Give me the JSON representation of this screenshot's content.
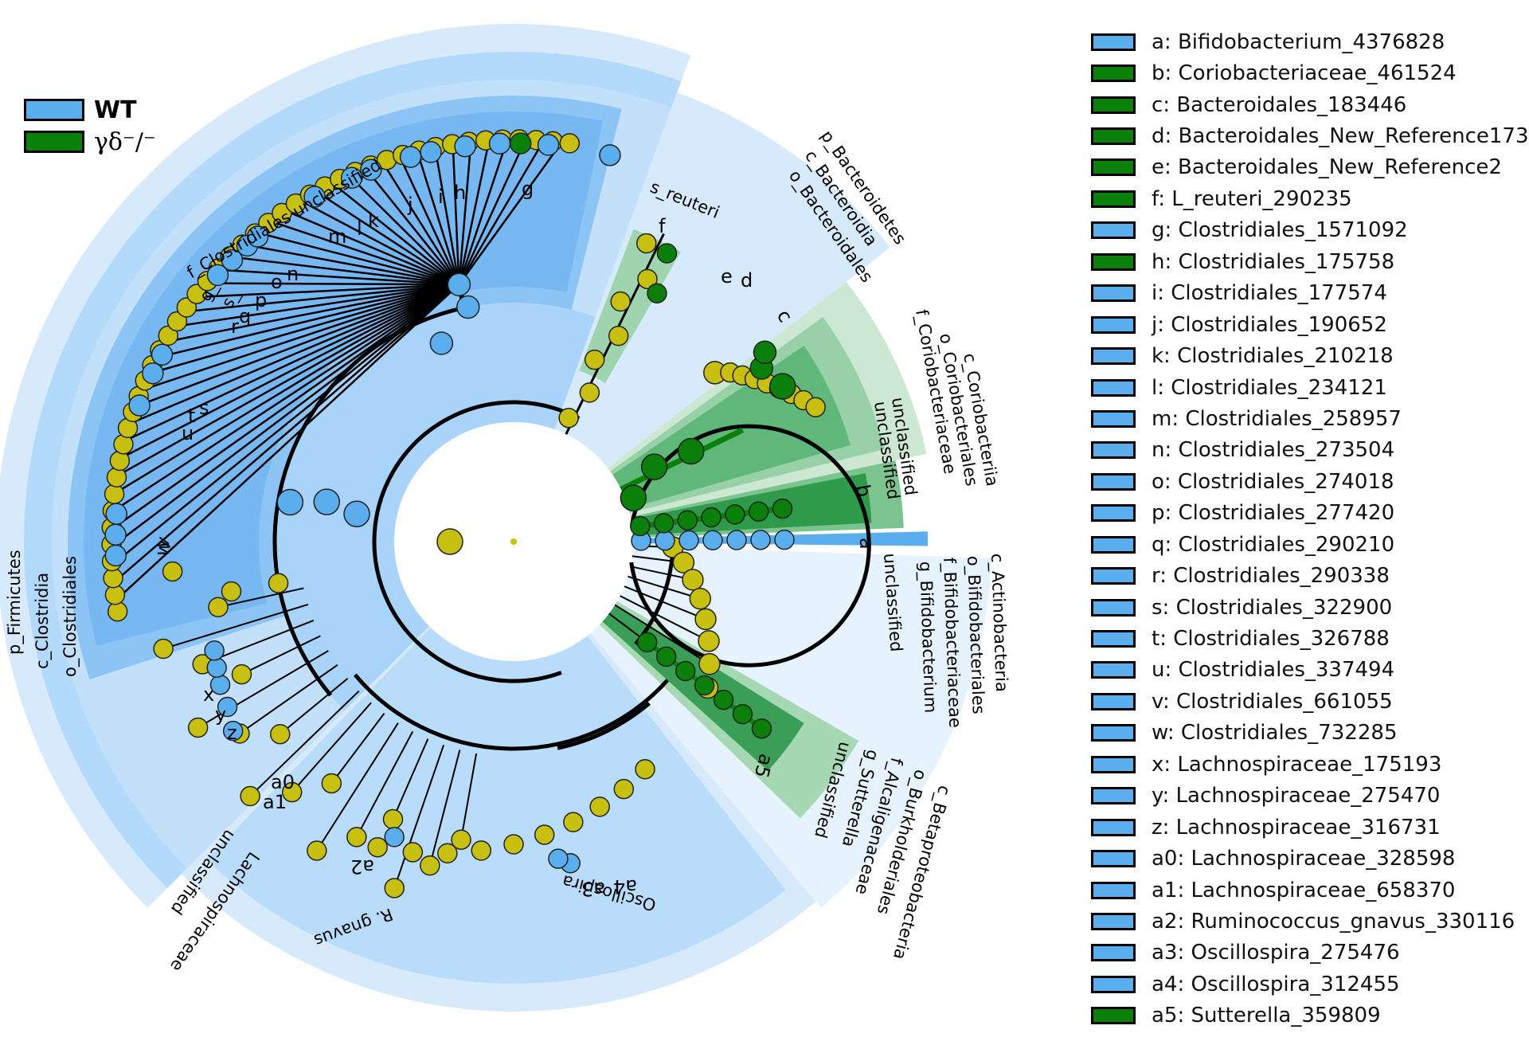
{
  "colors": {
    "wt": "#5aaeee",
    "ko": "#0a7f0a",
    "neutral": "#c8c010",
    "wt_band_light": "#d6eafc",
    "wt_band_mid": "#b3d9fb",
    "wt_band_dark": "#8cc4f6",
    "ko_band_light": "#cce8d2",
    "ko_band_dark": "#5fb77a"
  },
  "group_legend": [
    {
      "name": "WT",
      "color": "#5aaeee"
    },
    {
      "name": "γδ⁻/⁻",
      "color": "#0a7f0a"
    }
  ],
  "taxa_legend": [
    {
      "label": "a: Bifidobacterium_4376828",
      "group": "WT"
    },
    {
      "label": "b: Coriobacteriaceae_461524",
      "group": "KO"
    },
    {
      "label": "c: Bacteroidales_183446",
      "group": "KO"
    },
    {
      "label": "d: Bacteroidales_New_Reference173",
      "group": "KO"
    },
    {
      "label": "e: Bacteroidales_New_Reference2",
      "group": "KO"
    },
    {
      "label": "f: L_reuteri_290235",
      "group": "KO"
    },
    {
      "label": "g: Clostridiales_1571092",
      "group": "WT"
    },
    {
      "label": "h: Clostridiales_175758",
      "group": "KO"
    },
    {
      "label": "i: Clostridiales_177574",
      "group": "WT"
    },
    {
      "label": "j: Clostridiales_190652",
      "group": "WT"
    },
    {
      "label": "k: Clostridiales_210218",
      "group": "WT"
    },
    {
      "label": "l: Clostridiales_234121",
      "group": "WT"
    },
    {
      "label": "m: Clostridiales_258957",
      "group": "WT"
    },
    {
      "label": "n: Clostridiales_273504",
      "group": "WT"
    },
    {
      "label": "o: Clostridiales_274018",
      "group": "WT"
    },
    {
      "label": "p: Clostridiales_277420",
      "group": "WT"
    },
    {
      "label": "q: Clostridiales_290210",
      "group": "WT"
    },
    {
      "label": "r: Clostridiales_290338",
      "group": "WT"
    },
    {
      "label": "s: Clostridiales_322900",
      "group": "WT"
    },
    {
      "label": "t: Clostridiales_326788",
      "group": "WT"
    },
    {
      "label": "u: Clostridiales_337494",
      "group": "WT"
    },
    {
      "label": "v: Clostridiales_661055",
      "group": "WT"
    },
    {
      "label": "w: Clostridiales_732285",
      "group": "WT"
    },
    {
      "label": "x: Lachnospiraceae_175193",
      "group": "WT"
    },
    {
      "label": "y: Lachnospiraceae_275470",
      "group": "WT"
    },
    {
      "label": "z: Lachnospiraceae_316731",
      "group": "WT"
    },
    {
      "label": "a0: Lachnospiraceae_328598",
      "group": "WT"
    },
    {
      "label": "a1: Lachnospiraceae_658370",
      "group": "WT"
    },
    {
      "label": "a2: Ruminococcus_gnavus_330116",
      "group": "WT"
    },
    {
      "label": "a3: Oscillospira_275476",
      "group": "WT"
    },
    {
      "label": "a4: Oscillospira_312455",
      "group": "WT"
    },
    {
      "label": "a5: Sutterella_359809",
      "group": "KO"
    }
  ],
  "clade_labels": {
    "p_firmicutes": "p_Firmicutes",
    "c_clostridia": "c_Clostridia",
    "o_clostridiales": "o_Clostridiales",
    "f_clostridiales_unclassified": "f_Clostridiales unclassified",
    "g_": "g_",
    "s_": "s_",
    "s_reuteri": "s_reuteri",
    "p_bacteroidetes": "p_Bacteroidetes",
    "c_bacteroidia": "c_Bacteroidia",
    "o_bacteroidales": "o_Bacteroidales",
    "c_coriobacteriia": "c_Coriobacteriia",
    "o_coriobacteriales": "o_Coriobacteriales",
    "f_coriobacteriaceae": "f_Coriobacteriaceae",
    "unclassified_1": "unclassified",
    "unclassified_2": "unclassified",
    "c_actinobacteria": "c_Actinobacteria",
    "o_bifidobacteriales": "o_Bifidobacteriales",
    "f_bifidobacteriaceae": "f_Bifidobacteriaceae",
    "g_bifidobacterium": "g_Bifidobacterium",
    "unclassified_3": "unclassified",
    "c_betaproteobacteria": "c_Betaproteobacteria",
    "o_burkholderiales": "o_Burkholderiales",
    "f_alcaligenaceae": "f_Alcaligenaceae",
    "g_sutterella": "g_Sutterella",
    "unclassified_4": "unclassified",
    "lachnospiraceae": "Lachnospiraceae",
    "unclassified_5": "unclassified",
    "r_gnavus": "R. gnavus",
    "oscillospira": "Oscillospira"
  },
  "node_letters": {
    "g": "g",
    "h": "h",
    "i": "i",
    "j": "j",
    "k": "k",
    "l": "l",
    "m": "m",
    "n": "n",
    "o": "o",
    "p": "p",
    "q": "q",
    "r": "r",
    "s": "s",
    "t": "t",
    "u": "u",
    "v": "v",
    "w": "w",
    "x": "x",
    "y": "y",
    "z": "z",
    "a0": "a0",
    "a1": "a1",
    "a2": "a2",
    "a3": "a3",
    "a4": "a4",
    "a5": "a5",
    "a": "a",
    "b": "b",
    "c": "c",
    "d": "d",
    "e": "e",
    "f": "f"
  }
}
